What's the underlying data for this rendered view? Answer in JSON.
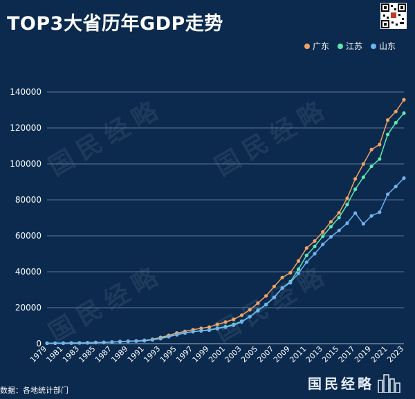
{
  "title": "TOP3大省历年GDP走势",
  "source": "数据：各地统计部门",
  "brand": "国民经略",
  "watermark": "国民经略",
  "colors": {
    "background": "#0b2a4e",
    "guangdong": "#f4a261",
    "jiangsu": "#5ee6b2",
    "shandong": "#6fb3f2",
    "grid": "#5c7898",
    "text": "#ffffff"
  },
  "chart_data": {
    "type": "line",
    "title": "TOP3大省历年GDP走势",
    "xlabel": "",
    "ylabel": "",
    "ylim": [
      0,
      140000
    ],
    "yticks": [
      0,
      20000,
      40000,
      60000,
      80000,
      100000,
      120000,
      140000
    ],
    "grid": true,
    "legend_position": "top-right",
    "x": [
      1979,
      1980,
      1981,
      1982,
      1983,
      1984,
      1985,
      1986,
      1987,
      1988,
      1989,
      1990,
      1991,
      1992,
      1993,
      1994,
      1995,
      1996,
      1997,
      1998,
      1999,
      2000,
      2001,
      2002,
      2003,
      2004,
      2005,
      2006,
      2007,
      2008,
      2009,
      2010,
      2011,
      2012,
      2013,
      2014,
      2015,
      2016,
      2017,
      2018,
      2019,
      2020,
      2021,
      2022,
      2023
    ],
    "xtick_labels": [
      "1979",
      "1981",
      "1983",
      "1985",
      "1987",
      "1989",
      "1991",
      "1993",
      "1995",
      "1997",
      "1999",
      "2001",
      "2003",
      "2005",
      "2007",
      "2009",
      "2011",
      "2013",
      "2015",
      "2017",
      "2019",
      "2021",
      "2023"
    ],
    "series": [
      {
        "name": "广东",
        "values": [
          210,
          250,
          290,
          340,
          370,
          460,
          580,
          670,
          850,
          1160,
          1380,
          1560,
          1890,
          2450,
          3470,
          4620,
          5930,
          6830,
          7770,
          8530,
          9250,
          10740,
          12040,
          13500,
          15840,
          18860,
          22560,
          26590,
          31780,
          36800,
          39480,
          46010,
          53210,
          57070,
          62160,
          67810,
          72810,
          80850,
          91650,
          99950,
          107990,
          110760,
          124370,
          129120,
          135670
        ]
      },
      {
        "name": "江苏",
        "values": [
          300,
          320,
          350,
          390,
          440,
          520,
          650,
          740,
          920,
          1210,
          1320,
          1420,
          1600,
          2140,
          2990,
          4060,
          5160,
          6000,
          6680,
          7200,
          7700,
          8550,
          9460,
          10630,
          12450,
          15000,
          18600,
          21650,
          25740,
          30980,
          34460,
          41430,
          49110,
          54060,
          59750,
          65090,
          70120,
          77390,
          85870,
          92600,
          98660,
          102720,
          116360,
          122880,
          128220
        ]
      },
      {
        "name": "山东",
        "values": [
          230,
          260,
          290,
          350,
          400,
          460,
          680,
          740,
          890,
          1120,
          1290,
          1510,
          1810,
          2200,
          2770,
          3840,
          4950,
          5960,
          6650,
          7160,
          7490,
          8340,
          9200,
          10280,
          12080,
          15020,
          18370,
          21900,
          25780,
          30930,
          33900,
          39170,
          45360,
          50010,
          55230,
          59430,
          63000,
          67010,
          72630,
          66650,
          71070,
          73130,
          83100,
          87440,
          92070
        ]
      }
    ]
  }
}
